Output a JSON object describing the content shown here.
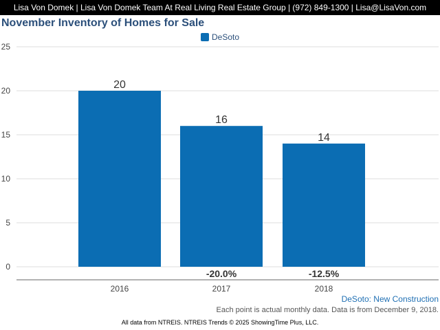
{
  "header": {
    "text": "Lisa Von Domek | Lisa Von Domek Team At Real Living Real Estate Group | (972) 849-1300 | Lisa@LisaVon.com"
  },
  "colors": {
    "bar": "#0b6db3",
    "title": "#2b4f7a",
    "grid": "#dddddd",
    "caption": "#1f6fb3"
  },
  "chart_data": {
    "type": "bar",
    "title": "November Inventory of Homes for Sale",
    "categories": [
      "2016",
      "2017",
      "2018"
    ],
    "series": [
      {
        "name": "DeSoto",
        "values": [
          20,
          16,
          14
        ]
      }
    ],
    "percent_changes": [
      "",
      "-20.0%",
      "-12.5%"
    ],
    "ylim": [
      0,
      25
    ],
    "yticks": [
      "0",
      "5",
      "10",
      "15",
      "20",
      "25"
    ],
    "xlabel": "",
    "ylabel": "",
    "grid": true,
    "legend_position": "top-center"
  },
  "caption": "DeSoto: New Construction",
  "note": "Each point is actual monthly data. Data is from December 9, 2018.",
  "footer": "All data from NTREIS. NTREIS Trends © 2025 ShowingTime Plus, LLC."
}
